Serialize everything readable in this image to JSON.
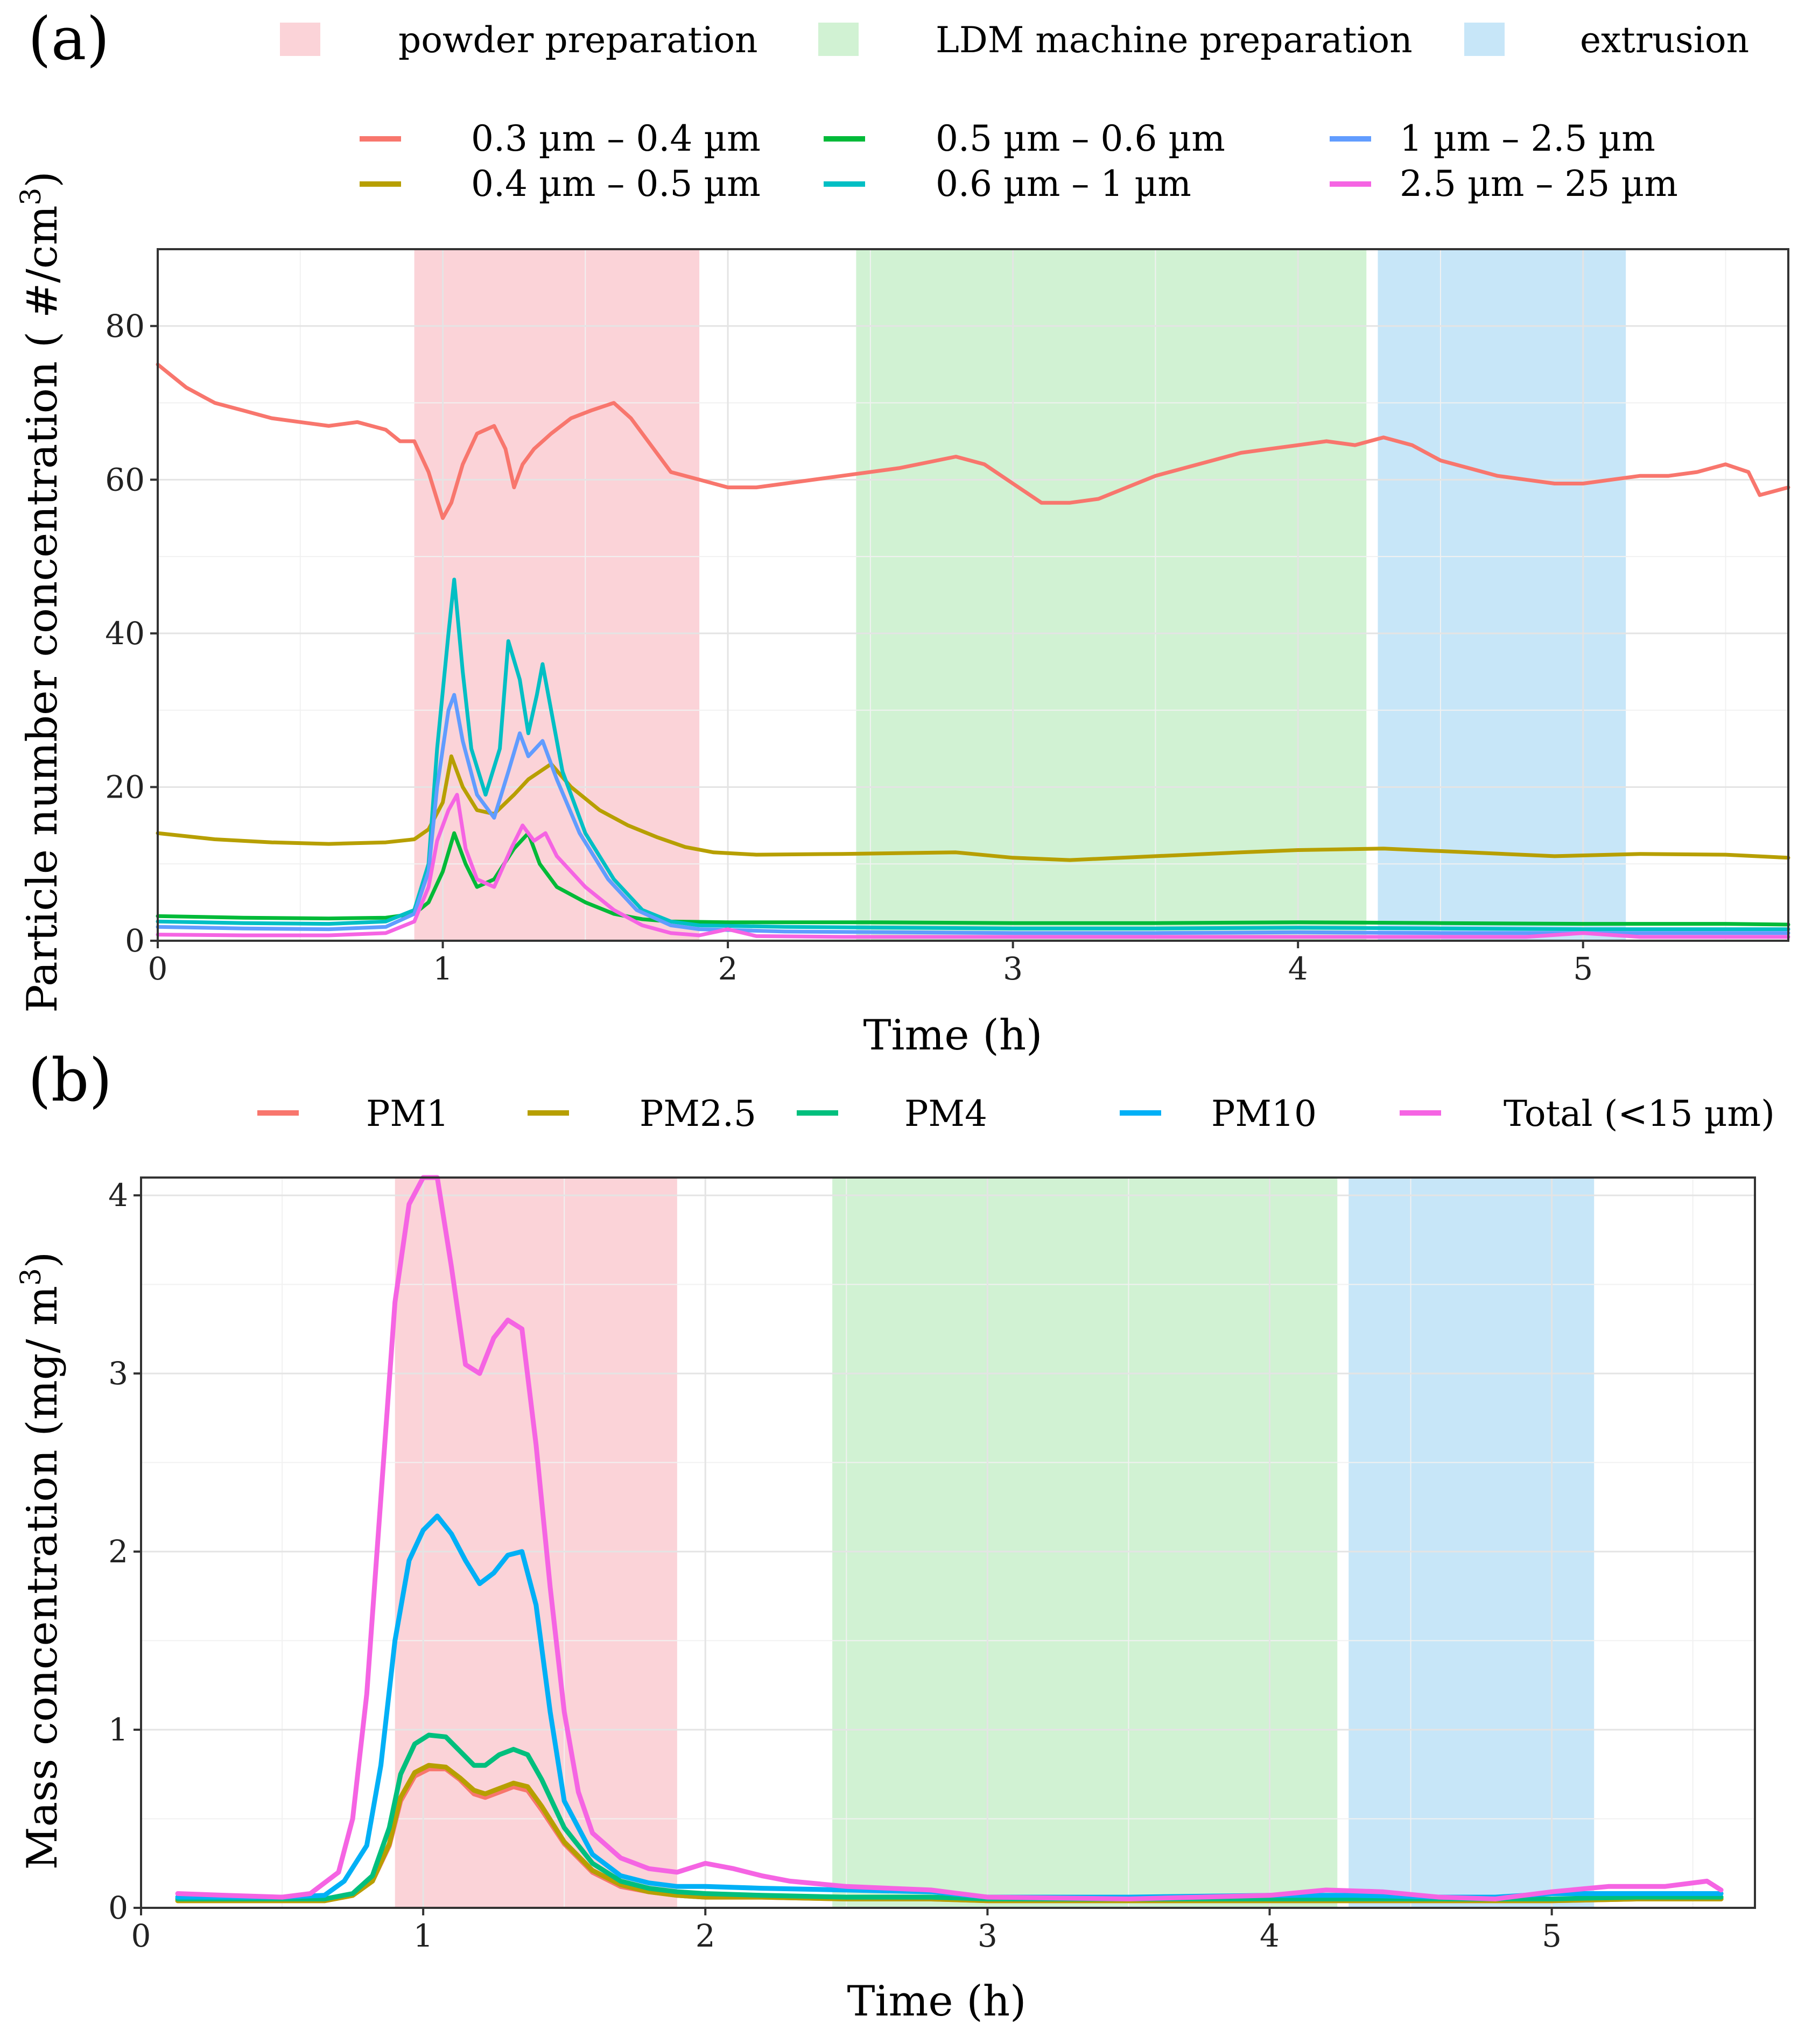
{
  "phase_legend": [
    {
      "label": "powder preparation",
      "color": "#fbd3d8"
    },
    {
      "label": "LDM machine preparation",
      "color": "#d1f2d3"
    },
    {
      "label": "extrusion",
      "color": "#c7e6f8"
    }
  ],
  "chart_data": [
    {
      "id": "a",
      "type": "line",
      "panel_label": "(a)",
      "title": "",
      "xlabel": "Time (h)",
      "ylabel": "Particle number concentration ( #/cm",
      "ylabel_sup": "3",
      "ylabel_end": ")",
      "xlim": [
        0,
        5.72
      ],
      "ylim": [
        0,
        90
      ],
      "xticks": [
        0,
        1,
        2,
        3,
        4,
        5
      ],
      "yticks": [
        0,
        20,
        40,
        60,
        80
      ],
      "xtick_labels": [
        "0",
        "1",
        "2",
        "3",
        "4",
        "5"
      ],
      "ytick_labels": [
        "0",
        "20",
        "40",
        "60",
        "80"
      ],
      "grid": true,
      "legend_position": "top",
      "phases": [
        {
          "label": "powder preparation",
          "start": 0.9,
          "end": 1.9,
          "color": "#fbd3d8"
        },
        {
          "label": "LDM machine preparation",
          "start": 2.45,
          "end": 4.24,
          "color": "#d1f2d3"
        },
        {
          "label": "extrusion",
          "start": 4.28,
          "end": 5.15,
          "color": "#c7e6f8"
        }
      ],
      "series": [
        {
          "name": "0.3 µm – 0.4 µm",
          "color": "#f8766d",
          "x": [
            0,
            0.05,
            0.1,
            0.2,
            0.3,
            0.4,
            0.5,
            0.6,
            0.7,
            0.8,
            0.85,
            0.9,
            0.95,
            1.0,
            1.03,
            1.07,
            1.12,
            1.18,
            1.22,
            1.25,
            1.28,
            1.32,
            1.38,
            1.45,
            1.52,
            1.6,
            1.66,
            1.72,
            1.8,
            1.9,
            2.0,
            2.1,
            2.2,
            2.4,
            2.6,
            2.8,
            2.9,
            3.0,
            3.1,
            3.2,
            3.3,
            3.4,
            3.5,
            3.6,
            3.7,
            3.8,
            3.9,
            4.0,
            4.1,
            4.2,
            4.3,
            4.4,
            4.5,
            4.6,
            4.7,
            4.8,
            4.9,
            5.0,
            5.1,
            5.2,
            5.3,
            5.4,
            5.5,
            5.58,
            5.62,
            5.72
          ],
          "values": [
            75,
            73.5,
            72,
            70,
            69,
            68,
            67.5,
            67,
            67.5,
            66.5,
            65,
            65,
            61,
            55,
            57,
            62,
            66,
            67,
            64,
            59,
            62,
            64,
            66,
            68,
            69,
            70,
            68,
            65,
            61,
            60,
            59,
            59,
            59.5,
            60.5,
            61.5,
            63,
            62,
            59.5,
            57,
            57,
            57.5,
            59,
            60.5,
            61.5,
            62.5,
            63.5,
            64,
            64.5,
            65,
            64.5,
            65.5,
            64.5,
            62.5,
            61.5,
            60.5,
            60,
            59.5,
            59.5,
            60,
            60.5,
            60.5,
            61,
            62,
            61,
            58,
            59
          ]
        },
        {
          "name": "0.4 µm – 0.5 µm",
          "color": "#b79f00",
          "x": [
            0,
            0.2,
            0.4,
            0.6,
            0.8,
            0.9,
            0.95,
            1.0,
            1.03,
            1.07,
            1.12,
            1.18,
            1.25,
            1.3,
            1.38,
            1.45,
            1.55,
            1.65,
            1.75,
            1.85,
            1.95,
            2.1,
            2.4,
            2.8,
            3.0,
            3.2,
            3.5,
            3.8,
            4.0,
            4.3,
            4.6,
            4.9,
            5.2,
            5.5,
            5.72
          ],
          "values": [
            14,
            13.2,
            12.8,
            12.6,
            12.8,
            13.2,
            14.5,
            18,
            24,
            20,
            17,
            16.5,
            19,
            21,
            23,
            20,
            17,
            15,
            13.5,
            12.2,
            11.5,
            11.2,
            11.3,
            11.5,
            10.8,
            10.5,
            11,
            11.5,
            11.8,
            12,
            11.5,
            11,
            11.3,
            11.2,
            10.8
          ]
        },
        {
          "name": "0.5 µm – 0.6 µm",
          "color": "#00ba38",
          "x": [
            0,
            0.3,
            0.6,
            0.8,
            0.9,
            0.95,
            1.0,
            1.04,
            1.08,
            1.12,
            1.18,
            1.25,
            1.3,
            1.34,
            1.4,
            1.5,
            1.6,
            1.7,
            1.8,
            2.0,
            2.5,
            3.0,
            3.5,
            4.0,
            4.5,
            5.0,
            5.5,
            5.72
          ],
          "values": [
            3.2,
            3.0,
            2.9,
            3.0,
            3.5,
            5,
            9,
            14,
            10,
            7,
            8,
            12,
            14,
            10,
            7,
            5,
            3.5,
            2.8,
            2.5,
            2.4,
            2.4,
            2.3,
            2.3,
            2.4,
            2.3,
            2.2,
            2.2,
            2.1
          ]
        },
        {
          "name": "0.6 µm – 1 µm",
          "color": "#00bfc4",
          "x": [
            0,
            0.3,
            0.6,
            0.8,
            0.9,
            0.95,
            0.98,
            1.02,
            1.04,
            1.07,
            1.1,
            1.15,
            1.2,
            1.23,
            1.27,
            1.3,
            1.33,
            1.35,
            1.38,
            1.42,
            1.5,
            1.6,
            1.7,
            1.8,
            1.9,
            2.2,
            2.6,
            3.0,
            3.5,
            4.0,
            4.5,
            5.0,
            5.5,
            5.72
          ],
          "values": [
            2.5,
            2.3,
            2.2,
            2.5,
            4,
            10,
            25,
            40,
            47,
            35,
            25,
            19,
            25,
            39,
            34,
            27,
            32,
            36,
            30,
            22,
            14,
            8,
            4,
            2.5,
            2,
            1.8,
            1.7,
            1.6,
            1.6,
            1.7,
            1.6,
            1.5,
            1.5,
            1.5
          ]
        },
        {
          "name": "1 µm – 2.5 µm",
          "color": "#619cff",
          "x": [
            0,
            0.3,
            0.6,
            0.8,
            0.9,
            0.95,
            0.98,
            1.02,
            1.04,
            1.07,
            1.12,
            1.18,
            1.23,
            1.27,
            1.3,
            1.35,
            1.4,
            1.48,
            1.58,
            1.68,
            1.8,
            1.9,
            2.2,
            2.6,
            3.0,
            3.5,
            4.0,
            4.5,
            5.0,
            5.5,
            5.72
          ],
          "values": [
            1.8,
            1.6,
            1.5,
            1.8,
            3.5,
            9,
            20,
            30,
            32,
            26,
            19,
            16,
            22,
            27,
            24,
            26,
            21,
            14,
            8,
            4,
            2,
            1.5,
            1.2,
            1.1,
            1.0,
            1.0,
            1.1,
            1.0,
            1.0,
            1.0,
            1.0
          ]
        },
        {
          "name": "2.5 µm – 25 µm",
          "color": "#f564e3",
          "x": [
            0,
            0.3,
            0.6,
            0.8,
            0.9,
            0.95,
            0.98,
            1.02,
            1.05,
            1.08,
            1.12,
            1.18,
            1.24,
            1.28,
            1.32,
            1.36,
            1.4,
            1.5,
            1.6,
            1.7,
            1.8,
            1.9,
            2.0,
            2.1,
            2.4,
            2.8,
            3.2,
            3.6,
            4.0,
            4.4,
            4.8,
            5.0,
            5.2,
            5.5,
            5.72
          ],
          "values": [
            0.8,
            0.7,
            0.7,
            1.0,
            2.5,
            7,
            13,
            17,
            19,
            12,
            8,
            7,
            12,
            15,
            13,
            14,
            11,
            7,
            4,
            2,
            1,
            0.7,
            1.5,
            0.6,
            0.5,
            0.5,
            0.5,
            0.5,
            0.5,
            0.5,
            0.5,
            1.0,
            0.5,
            0.5,
            0.5
          ]
        }
      ]
    },
    {
      "id": "b",
      "type": "line",
      "panel_label": "(b)",
      "title": "",
      "xlabel": "Time (h)",
      "ylabel": "Mass concentration (mg/ m",
      "ylabel_sup": "3",
      "ylabel_end": ")",
      "xlim": [
        0,
        5.72
      ],
      "ylim": [
        0,
        4.1
      ],
      "xticks": [
        0,
        1,
        2,
        3,
        4,
        5
      ],
      "yticks": [
        0,
        1,
        2,
        3,
        4
      ],
      "xtick_labels": [
        "0",
        "1",
        "2",
        "3",
        "4",
        "5"
      ],
      "ytick_labels": [
        "0",
        "1",
        "2",
        "3",
        "4"
      ],
      "grid": true,
      "legend_position": "top",
      "phases": [
        {
          "label": "powder preparation",
          "start": 0.9,
          "end": 1.9,
          "color": "#fbd3d8"
        },
        {
          "label": "LDM machine preparation",
          "start": 2.45,
          "end": 4.24,
          "color": "#d1f2d3"
        },
        {
          "label": "extrusion",
          "start": 4.28,
          "end": 5.15,
          "color": "#c7e6f8"
        }
      ],
      "series": [
        {
          "name": "PM1",
          "color": "#f8766d",
          "x": [
            0.13,
            0.3,
            0.5,
            0.65,
            0.75,
            0.82,
            0.88,
            0.92,
            0.97,
            1.02,
            1.08,
            1.13,
            1.18,
            1.22,
            1.27,
            1.32,
            1.37,
            1.42,
            1.5,
            1.6,
            1.7,
            1.8,
            1.9,
            2.0,
            2.2,
            2.5,
            2.8,
            3.0,
            3.5,
            4.0,
            4.3,
            4.6,
            4.8,
            5.0,
            5.3,
            5.6
          ],
          "values": [
            0.04,
            0.04,
            0.04,
            0.04,
            0.07,
            0.15,
            0.35,
            0.6,
            0.74,
            0.78,
            0.78,
            0.72,
            0.64,
            0.62,
            0.65,
            0.68,
            0.66,
            0.55,
            0.36,
            0.2,
            0.12,
            0.09,
            0.07,
            0.06,
            0.06,
            0.05,
            0.05,
            0.04,
            0.04,
            0.04,
            0.04,
            0.04,
            0.04,
            0.04,
            0.05,
            0.05
          ]
        },
        {
          "name": "PM2.5",
          "color": "#b79f00",
          "x": [
            0.13,
            0.3,
            0.5,
            0.65,
            0.75,
            0.82,
            0.88,
            0.92,
            0.97,
            1.02,
            1.08,
            1.13,
            1.18,
            1.22,
            1.27,
            1.32,
            1.37,
            1.42,
            1.5,
            1.6,
            1.7,
            1.8,
            1.9,
            2.0,
            2.2,
            2.5,
            2.8,
            3.0,
            3.5,
            4.0,
            4.3,
            4.6,
            4.8,
            5.0,
            5.3,
            5.6
          ],
          "values": [
            0.04,
            0.04,
            0.04,
            0.04,
            0.07,
            0.15,
            0.36,
            0.62,
            0.76,
            0.8,
            0.79,
            0.73,
            0.66,
            0.64,
            0.67,
            0.7,
            0.68,
            0.57,
            0.37,
            0.21,
            0.13,
            0.09,
            0.07,
            0.06,
            0.06,
            0.05,
            0.05,
            0.04,
            0.04,
            0.04,
            0.04,
            0.04,
            0.04,
            0.04,
            0.05,
            0.05
          ]
        },
        {
          "name": "PM4",
          "color": "#00bf7d",
          "x": [
            0.13,
            0.3,
            0.5,
            0.65,
            0.75,
            0.82,
            0.88,
            0.92,
            0.97,
            1.02,
            1.08,
            1.13,
            1.18,
            1.22,
            1.27,
            1.32,
            1.37,
            1.42,
            1.5,
            1.6,
            1.7,
            1.8,
            1.9,
            2.0,
            2.2,
            2.5,
            2.8,
            3.0,
            3.5,
            4.0,
            4.3,
            4.6,
            4.8,
            5.0,
            5.3,
            5.6
          ],
          "values": [
            0.05,
            0.05,
            0.05,
            0.05,
            0.08,
            0.18,
            0.45,
            0.75,
            0.92,
            0.97,
            0.96,
            0.88,
            0.8,
            0.8,
            0.86,
            0.89,
            0.86,
            0.72,
            0.45,
            0.25,
            0.15,
            0.11,
            0.09,
            0.08,
            0.07,
            0.06,
            0.06,
            0.05,
            0.05,
            0.05,
            0.05,
            0.05,
            0.05,
            0.05,
            0.06,
            0.06
          ]
        },
        {
          "name": "PM10",
          "color": "#00b0f6",
          "x": [
            0.13,
            0.3,
            0.5,
            0.65,
            0.72,
            0.8,
            0.85,
            0.9,
            0.95,
            1.0,
            1.05,
            1.1,
            1.15,
            1.2,
            1.25,
            1.3,
            1.35,
            1.4,
            1.45,
            1.5,
            1.6,
            1.7,
            1.8,
            1.9,
            2.0,
            2.2,
            2.5,
            2.8,
            3.0,
            3.5,
            4.0,
            4.3,
            4.6,
            4.8,
            5.0,
            5.3,
            5.6
          ],
          "values": [
            0.06,
            0.06,
            0.06,
            0.07,
            0.15,
            0.35,
            0.8,
            1.5,
            1.95,
            2.12,
            2.2,
            2.1,
            1.95,
            1.82,
            1.88,
            1.98,
            2.0,
            1.7,
            1.1,
            0.6,
            0.3,
            0.18,
            0.14,
            0.12,
            0.12,
            0.11,
            0.1,
            0.09,
            0.06,
            0.06,
            0.07,
            0.07,
            0.06,
            0.06,
            0.08,
            0.08,
            0.08
          ]
        },
        {
          "name": "Total (<15 µm)",
          "color": "#f564e3",
          "x": [
            0.13,
            0.3,
            0.5,
            0.6,
            0.7,
            0.75,
            0.8,
            0.85,
            0.9,
            0.95,
            1.0,
            1.05,
            1.1,
            1.15,
            1.2,
            1.25,
            1.3,
            1.35,
            1.4,
            1.45,
            1.5,
            1.55,
            1.6,
            1.7,
            1.8,
            1.9,
            2.0,
            2.1,
            2.2,
            2.3,
            2.5,
            2.8,
            3.0,
            3.5,
            4.0,
            4.2,
            4.4,
            4.6,
            4.8,
            5.0,
            5.2,
            5.4,
            5.55,
            5.6
          ],
          "values": [
            0.08,
            0.07,
            0.06,
            0.08,
            0.2,
            0.5,
            1.2,
            2.3,
            3.4,
            3.95,
            4.1,
            4.1,
            3.6,
            3.05,
            3.0,
            3.2,
            3.3,
            3.25,
            2.6,
            1.8,
            1.1,
            0.65,
            0.42,
            0.28,
            0.22,
            0.2,
            0.25,
            0.22,
            0.18,
            0.15,
            0.12,
            0.1,
            0.06,
            0.05,
            0.07,
            0.1,
            0.09,
            0.06,
            0.05,
            0.09,
            0.12,
            0.12,
            0.15,
            0.1
          ]
        }
      ]
    }
  ]
}
